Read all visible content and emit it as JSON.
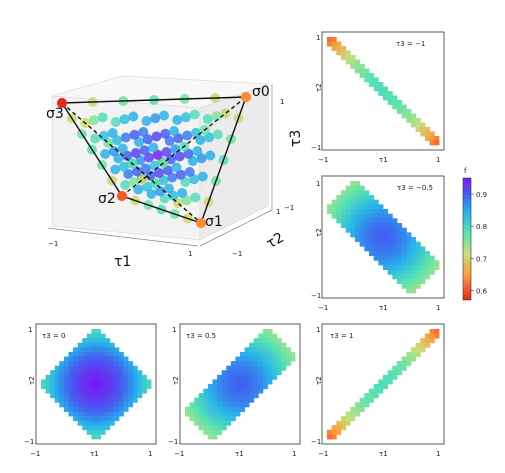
{
  "chart_data": [
    {
      "type": "scatter",
      "panel": "3d-tetrahedron",
      "vertices": [
        {
          "label": "σ0",
          "tau": [
            1,
            1,
            1
          ]
        },
        {
          "label": "σ1",
          "tau": [
            1,
            -1,
            -1
          ]
        },
        {
          "label": "σ2",
          "tau": [
            -1,
            1,
            -1
          ]
        },
        {
          "label": "σ3",
          "tau": [
            -1,
            -1,
            1
          ]
        }
      ],
      "xlabel": "τ1",
      "ylabel": "τ2",
      "zlabel": "τ3",
      "xticks": [
        "−1",
        "1"
      ],
      "yticks": [
        "−1",
        "1"
      ],
      "zticks": [
        "−1",
        "1"
      ],
      "color_encoding": "f"
    },
    {
      "type": "heatmap",
      "slice": "τ3 = −1",
      "slice_value": -1,
      "f_min": 0.6,
      "f_max": 0.7
    },
    {
      "type": "heatmap",
      "slice": "τ3 = −0.5",
      "slice_value": -0.5,
      "f_min": 0.78,
      "f_max": 0.8
    },
    {
      "type": "heatmap",
      "slice": "τ3 = 0",
      "slice_value": 0,
      "f_min": 0.8,
      "f_max": 0.92
    },
    {
      "type": "heatmap",
      "slice": "τ3 = 0.5",
      "slice_value": 0.5,
      "f_min": 0.78,
      "f_max": 0.8
    },
    {
      "type": "heatmap",
      "slice": "τ3 = 1",
      "slice_value": 1,
      "f_min": 0.6,
      "f_max": 0.7
    }
  ],
  "panel_axes": {
    "xlabel": "τ1",
    "ylabel": "τ2",
    "ticks": [
      "−1",
      "1"
    ]
  },
  "colorbar": {
    "label": "f",
    "min": 0.57,
    "max": 0.95,
    "ticks": [
      "0.9",
      "0.8",
      "0.7",
      "0.6"
    ],
    "colormap": "rainbow"
  },
  "vertex_labels": {
    "s0": "σ0",
    "s1": "σ1",
    "s2": "σ2",
    "s3": "σ3"
  }
}
